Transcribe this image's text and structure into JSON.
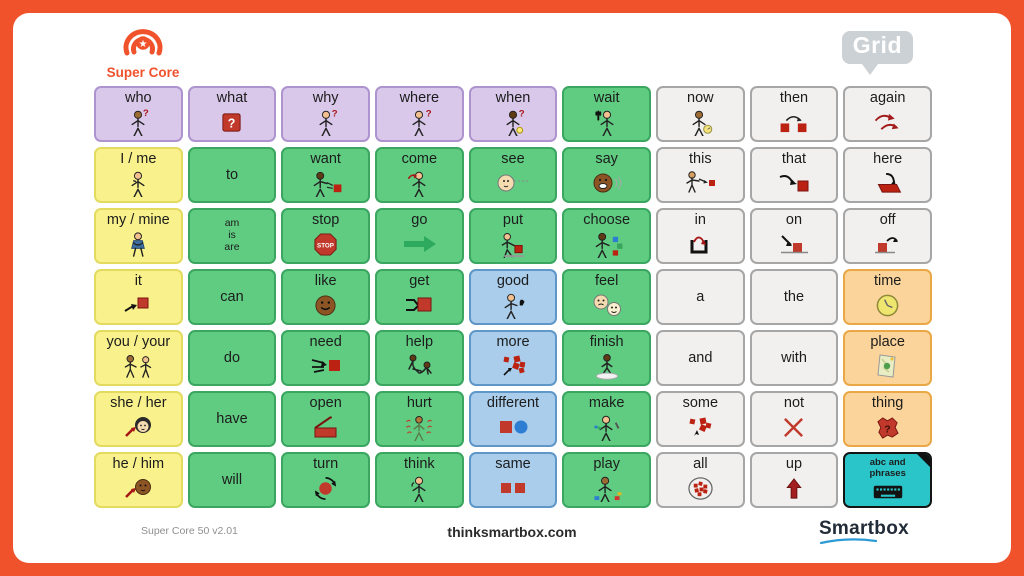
{
  "header": {
    "product_logo_text": "Super Core",
    "platform_logo_text": "Grid"
  },
  "footer": {
    "version": "Super Core 50 v2.01",
    "website": "thinksmartbox.com",
    "brand": "Smartbox"
  },
  "colors": {
    "frame": "#F0522C",
    "card": "#FFFFFF",
    "accent_orange": "#F0522C",
    "grid_logo_gray": "#CCD1D5",
    "brand_underline_blue": "#2E9BD6"
  },
  "palette": {
    "purple": {
      "bg": "#D9C8EA",
      "border": "#AE94CE"
    },
    "yellow": {
      "bg": "#F9F28C",
      "border": "#E3DA60"
    },
    "green": {
      "bg": "#5FCC82",
      "border": "#3AA660"
    },
    "neutral": {
      "bg": "#F1F0EE",
      "border": "#A6A6A6"
    },
    "blue": {
      "bg": "#A9CDEB",
      "border": "#5E97C8"
    },
    "orange": {
      "bg": "#FBD49B",
      "border": "#E9A845"
    },
    "teal": {
      "bg": "#2AC5C9",
      "border": "#141414"
    }
  },
  "grid": {
    "columns": 9,
    "rows": 7,
    "cells": [
      {
        "label": "who",
        "color": "purple",
        "icon": "who-person"
      },
      {
        "label": "what",
        "color": "purple",
        "icon": "question-square"
      },
      {
        "label": "why",
        "color": "purple",
        "icon": "why-person"
      },
      {
        "label": "where",
        "color": "purple",
        "icon": "where-person"
      },
      {
        "label": "when",
        "color": "purple",
        "icon": "when-person"
      },
      {
        "label": "wait",
        "color": "green",
        "icon": "wait-hand-person"
      },
      {
        "label": "now",
        "color": "neutral",
        "icon": "now-person-clock"
      },
      {
        "label": "then",
        "color": "neutral",
        "icon": "then-sequence"
      },
      {
        "label": "again",
        "color": "neutral",
        "icon": "again-arrows"
      },
      {
        "label": "I / me",
        "color": "yellow",
        "icon": "point-to-self-person"
      },
      {
        "label": "to",
        "color": "green",
        "icon": null
      },
      {
        "label": "want",
        "color": "green",
        "icon": "want-person-square"
      },
      {
        "label": "come",
        "color": "green",
        "icon": "come-person"
      },
      {
        "label": "see",
        "color": "green",
        "icon": "see-face"
      },
      {
        "label": "say",
        "color": "green",
        "icon": "say-face"
      },
      {
        "label": "this",
        "color": "neutral",
        "icon": "this-point-square"
      },
      {
        "label": "that",
        "color": "neutral",
        "icon": "that-hand-square"
      },
      {
        "label": "here",
        "color": "neutral",
        "icon": "here-hand-floor"
      },
      {
        "label": "my / mine",
        "color": "yellow",
        "icon": "my-hug-person"
      },
      {
        "label": "am\nis\nare",
        "color": "green",
        "icon": null,
        "size": "small"
      },
      {
        "label": "stop",
        "color": "green",
        "icon": "stop-sign"
      },
      {
        "label": "go",
        "color": "green",
        "icon": "go-arrow"
      },
      {
        "label": "put",
        "color": "green",
        "icon": "put-person-square"
      },
      {
        "label": "choose",
        "color": "green",
        "icon": "choose-person-squares"
      },
      {
        "label": "in",
        "color": "neutral",
        "icon": "in-container-arrow"
      },
      {
        "label": "on",
        "color": "neutral",
        "icon": "on-square-arrow"
      },
      {
        "label": "off",
        "color": "neutral",
        "icon": "off-square-arrow"
      },
      {
        "label": "it",
        "color": "yellow",
        "icon": "it-hand-square"
      },
      {
        "label": "can",
        "color": "green",
        "icon": null
      },
      {
        "label": "like",
        "color": "green",
        "icon": "like-smiley-face"
      },
      {
        "label": "get",
        "color": "green",
        "icon": "get-grab-square"
      },
      {
        "label": "good",
        "color": "blue",
        "icon": "good-thumbs-up-person"
      },
      {
        "label": "feel",
        "color": "green",
        "icon": "feel-faces"
      },
      {
        "label": "a",
        "color": "neutral",
        "icon": null
      },
      {
        "label": "the",
        "color": "neutral",
        "icon": null
      },
      {
        "label": "time",
        "color": "orange",
        "icon": "time-clock"
      },
      {
        "label": "you / your",
        "color": "yellow",
        "icon": "you-two-people"
      },
      {
        "label": "do",
        "color": "green",
        "icon": null
      },
      {
        "label": "need",
        "color": "green",
        "icon": "need-arrows-square"
      },
      {
        "label": "help",
        "color": "green",
        "icon": "help-people"
      },
      {
        "label": "more",
        "color": "blue",
        "icon": "more-squares"
      },
      {
        "label": "finish",
        "color": "green",
        "icon": "finish-person-mat"
      },
      {
        "label": "and",
        "color": "neutral",
        "icon": null
      },
      {
        "label": "with",
        "color": "neutral",
        "icon": null
      },
      {
        "label": "place",
        "color": "orange",
        "icon": "place-map"
      },
      {
        "label": "she / her",
        "color": "yellow",
        "icon": "she-face-arrow"
      },
      {
        "label": "have",
        "color": "green",
        "icon": null
      },
      {
        "label": "open",
        "color": "green",
        "icon": "open-box"
      },
      {
        "label": "hurt",
        "color": "green",
        "icon": "hurt-person"
      },
      {
        "label": "different",
        "color": "blue",
        "icon": "different-shapes"
      },
      {
        "label": "make",
        "color": "green",
        "icon": "make-person"
      },
      {
        "label": "some",
        "color": "neutral",
        "icon": "some-squares-cursor"
      },
      {
        "label": "not",
        "color": "neutral",
        "icon": "not-cross"
      },
      {
        "label": "thing",
        "color": "orange",
        "icon": "thing-blob"
      },
      {
        "label": "he / him",
        "color": "yellow",
        "icon": "he-face-arrow"
      },
      {
        "label": "will",
        "color": "green",
        "icon": null
      },
      {
        "label": "turn",
        "color": "green",
        "icon": "turn-rotate"
      },
      {
        "label": "think",
        "color": "green",
        "icon": "think-person"
      },
      {
        "label": "same",
        "color": "blue",
        "icon": "same-squares"
      },
      {
        "label": "play",
        "color": "green",
        "icon": "play-person-toys"
      },
      {
        "label": "all",
        "color": "neutral",
        "icon": "all-squares-circle"
      },
      {
        "label": "up",
        "color": "neutral",
        "icon": "up-arrow"
      },
      {
        "label": "abc and\nphrases",
        "color": "teal",
        "icon": "keyboard",
        "size": "tiny",
        "fold": true
      }
    ]
  }
}
